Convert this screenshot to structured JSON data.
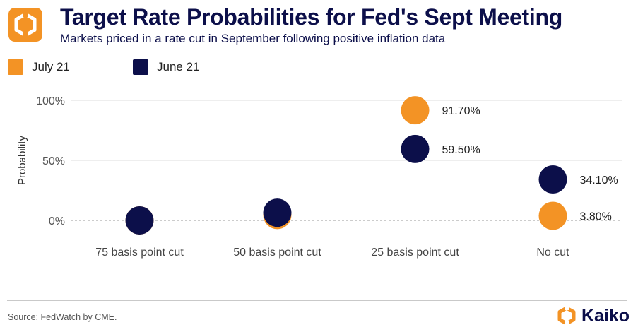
{
  "header": {
    "title": "Target Rate Probabilities for Fed's Sept Meeting",
    "subtitle": "Markets priced in a rate cut in September following positive inflation data"
  },
  "legend": [
    {
      "label": "July 21",
      "color": "#f39325"
    },
    {
      "label": "June 21",
      "color": "#0c0f4a"
    }
  ],
  "footer": {
    "source": "Source: FedWatch by CME.",
    "brand": "Kaiko",
    "brand_color": "#f39325"
  },
  "chart_data": {
    "type": "scatter",
    "ylabel": "Probability",
    "xlabel": "",
    "ylim": [
      0,
      100
    ],
    "yticks": [
      "0%",
      "50%",
      "100%"
    ],
    "ytick_values": [
      0,
      50,
      100
    ],
    "grid": true,
    "legend_position": "top-left",
    "categories": [
      "75 basis point cut",
      "50 basis point cut",
      "25 basis point cut",
      "No cut"
    ],
    "series": [
      {
        "name": "July 21",
        "color": "#f39325",
        "values": [
          0,
          4.5,
          91.7,
          3.8
        ],
        "labels": [
          "",
          "",
          "91.70%",
          "3.80%"
        ]
      },
      {
        "name": "June 21",
        "color": "#0c0f4a",
        "values": [
          0,
          6.4,
          59.5,
          34.1
        ],
        "labels": [
          "",
          "",
          "59.50%",
          "34.10%"
        ]
      }
    ]
  }
}
